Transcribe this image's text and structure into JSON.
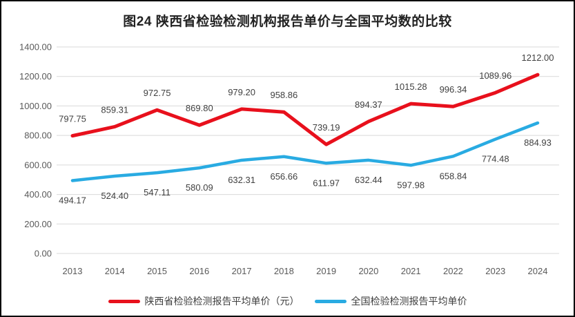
{
  "chart_data": {
    "type": "line",
    "title": "图24 陕西省检验检测机构报告单价与全国平均数的比较",
    "categories": [
      "2013",
      "2014",
      "2015",
      "2016",
      "2017",
      "2018",
      "2019",
      "2020",
      "2021",
      "2022",
      "2023",
      "2024"
    ],
    "series": [
      {
        "name": "陕西省检验检测报告平均单价（元）",
        "color": "#e8101c",
        "label_side": "above",
        "values": [
          797.75,
          859.31,
          972.75,
          869.8,
          979.2,
          958.86,
          739.19,
          894.37,
          1015.28,
          996.34,
          1089.96,
          1212.0
        ]
      },
      {
        "name": "全国检验检测报告平均单价",
        "color": "#29abe2",
        "label_side": "below",
        "values": [
          494.17,
          524.4,
          547.11,
          580.09,
          632.31,
          656.66,
          611.97,
          632.44,
          597.98,
          658.84,
          774.48,
          884.93
        ]
      }
    ],
    "ylim": [
      0,
      1400
    ],
    "ytick_step": 200,
    "ytick_format": "two_decimals",
    "grid": "horizontal",
    "legend_position": "bottom"
  },
  "colors": {
    "gridline": "#d9d9d9",
    "axis_text": "#595959",
    "data_label_text": "#404040",
    "frame_border": "#000000",
    "background": "#ffffff"
  }
}
